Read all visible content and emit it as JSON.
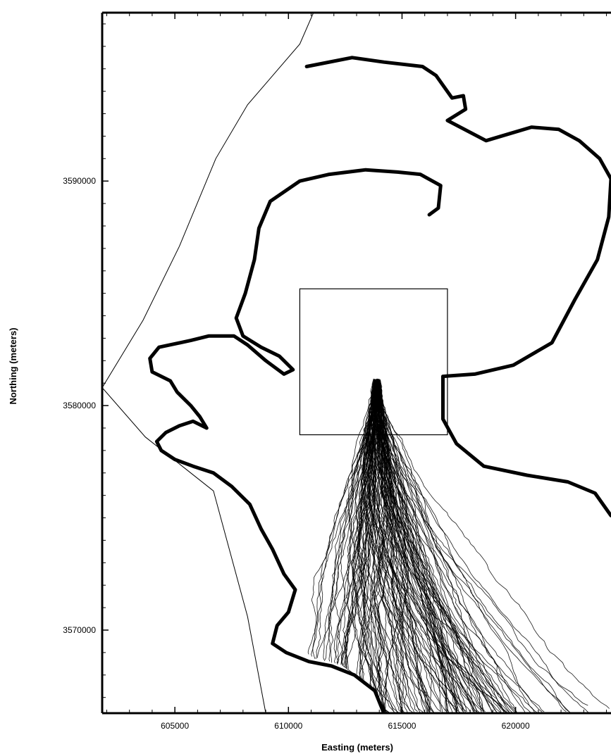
{
  "chart_data": {
    "type": "line",
    "title": "",
    "xlabel": "Easting (meters)",
    "ylabel": "Northing (meters)",
    "x_ticks": [
      605000,
      610000,
      615000,
      620000
    ],
    "y_ticks": [
      3590000,
      3580000,
      3570000
    ],
    "x_tick_labels": [
      "605000",
      "610000",
      "615000",
      "620000"
    ],
    "y_tick_labels": [
      "3590000",
      "3580000",
      "3570000"
    ],
    "xlim": [
      601800,
      624200
    ],
    "ylim": [
      3566300,
      3597500
    ],
    "grid": false,
    "legend": "none",
    "colors": {
      "ink": "#000000",
      "background": "#ffffff"
    },
    "shoreline": {
      "north": [
        [
          610800,
          3595100
        ],
        [
          612800,
          3595500
        ],
        [
          614200,
          3595300
        ],
        [
          615900,
          3595100
        ],
        [
          616500,
          3594700
        ],
        [
          617200,
          3593700
        ],
        [
          617700,
          3593800
        ],
        [
          617800,
          3593200
        ],
        [
          617000,
          3592700
        ],
        [
          618700,
          3591800
        ],
        [
          619700,
          3592100
        ],
        [
          620700,
          3592400
        ],
        [
          621900,
          3592300
        ],
        [
          622800,
          3591800
        ],
        [
          623700,
          3591000
        ],
        [
          624200,
          3590100
        ]
      ],
      "east": [
        [
          624200,
          3590100
        ],
        [
          624100,
          3588400
        ],
        [
          623600,
          3586500
        ],
        [
          622600,
          3584700
        ],
        [
          621600,
          3582800
        ],
        [
          619900,
          3581800
        ],
        [
          618200,
          3581400
        ],
        [
          616800,
          3581300
        ],
        [
          616800,
          3579400
        ],
        [
          617400,
          3578300
        ],
        [
          618600,
          3577300
        ],
        [
          620500,
          3576900
        ],
        [
          622300,
          3576600
        ],
        [
          623500,
          3576100
        ],
        [
          624200,
          3575100
        ]
      ],
      "west": [
        [
          616200,
          3588500
        ],
        [
          616600,
          3588800
        ],
        [
          616700,
          3589800
        ],
        [
          615800,
          3590300
        ],
        [
          614800,
          3590400
        ],
        [
          613400,
          3590500
        ],
        [
          611800,
          3590300
        ],
        [
          610500,
          3590000
        ],
        [
          609200,
          3589100
        ],
        [
          608700,
          3587900
        ],
        [
          608500,
          3586500
        ],
        [
          608100,
          3585000
        ],
        [
          607700,
          3583900
        ],
        [
          608000,
          3583100
        ],
        [
          608800,
          3582600
        ],
        [
          609600,
          3582200
        ],
        [
          610200,
          3581600
        ],
        [
          609800,
          3581400
        ],
        [
          609000,
          3582000
        ],
        [
          608200,
          3582700
        ],
        [
          607600,
          3583100
        ],
        [
          606500,
          3583100
        ],
        [
          605700,
          3582900
        ],
        [
          604300,
          3582600
        ],
        [
          603900,
          3582100
        ],
        [
          604000,
          3581500
        ],
        [
          604800,
          3581100
        ],
        [
          605100,
          3580600
        ],
        [
          605700,
          3580000
        ],
        [
          606100,
          3579500
        ],
        [
          606400,
          3579000
        ],
        [
          605800,
          3579300
        ],
        [
          605200,
          3579100
        ],
        [
          604600,
          3578800
        ],
        [
          604200,
          3578400
        ],
        [
          604400,
          3578000
        ],
        [
          605000,
          3577600
        ],
        [
          605800,
          3577300
        ],
        [
          606700,
          3577000
        ],
        [
          607500,
          3576400
        ],
        [
          608300,
          3575600
        ],
        [
          608800,
          3574500
        ],
        [
          609300,
          3573600
        ],
        [
          609800,
          3572500
        ],
        [
          610300,
          3571800
        ],
        [
          610000,
          3570800
        ],
        [
          609500,
          3570200
        ],
        [
          609300,
          3569400
        ],
        [
          609900,
          3569000
        ],
        [
          610900,
          3568600
        ],
        [
          611900,
          3568400
        ],
        [
          612900,
          3568000
        ],
        [
          613800,
          3567300
        ],
        [
          614200,
          3566300
        ]
      ]
    },
    "model_domain": [
      [
        611100,
        3597500
      ],
      [
        610500,
        3596100
      ],
      [
        608200,
        3593400
      ],
      [
        606800,
        3591000
      ],
      [
        605200,
        3587100
      ],
      [
        603600,
        3583800
      ],
      [
        601800,
        3580800
      ],
      [
        603700,
        3578600
      ],
      [
        606700,
        3576200
      ],
      [
        608200,
        3570600
      ],
      [
        609000,
        3566300
      ]
    ],
    "release_box": {
      "x": [
        610500,
        617000
      ],
      "y": [
        3578700,
        3585200
      ]
    },
    "release_point": [
      613900,
      3581200
    ],
    "trajectory_envelope": [
      [
        613400,
        3581000
      ],
      [
        612500,
        3580600
      ],
      [
        612000,
        3579500
      ],
      [
        611500,
        3578200
      ],
      [
        610800,
        3576900
      ],
      [
        610300,
        3575500
      ],
      [
        610100,
        3574200
      ],
      [
        609800,
        3572600
      ],
      [
        609600,
        3571400
      ],
      [
        609700,
        3570200
      ],
      [
        610200,
        3569200
      ],
      [
        611200,
        3568700
      ],
      [
        612400,
        3568400
      ],
      [
        613500,
        3567600
      ],
      [
        614300,
        3566300
      ],
      [
        624200,
        3566300
      ],
      [
        624200,
        3568500
      ],
      [
        622600,
        3570600
      ],
      [
        621000,
        3572400
      ],
      [
        619200,
        3574100
      ],
      [
        617800,
        3575600
      ],
      [
        616800,
        3576900
      ],
      [
        616200,
        3578200
      ],
      [
        615600,
        3579800
      ],
      [
        614800,
        3581100
      ],
      [
        614100,
        3581300
      ]
    ],
    "trajectories": {
      "count": 140,
      "start": [
        613900,
        3581200
      ]
    }
  }
}
